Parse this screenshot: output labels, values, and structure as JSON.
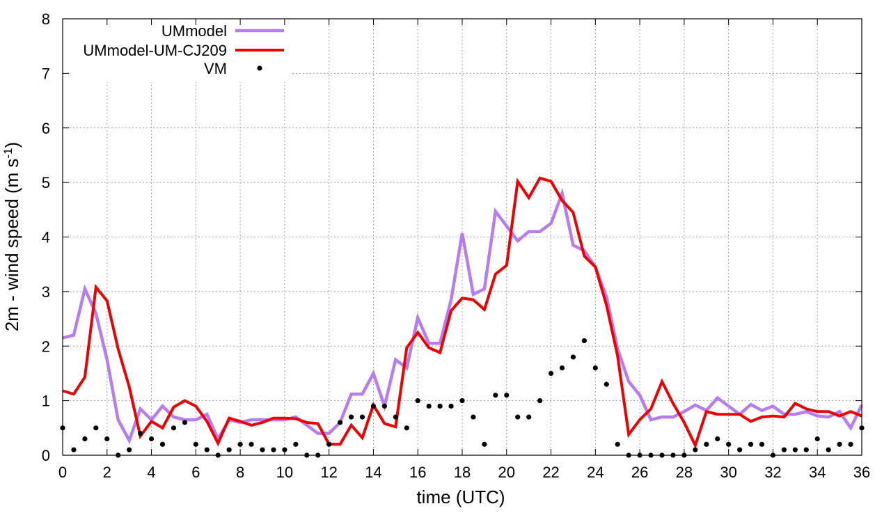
{
  "chart_data": {
    "type": "line",
    "xlabel": "time (UTC)",
    "ylabel_main": "2m - wind speed  (m s",
    "ylabel_sup": "-1",
    "ylabel_close": ")",
    "xlim": [
      0,
      36
    ],
    "ylim": [
      0,
      8
    ],
    "xticks": [
      0,
      2,
      4,
      6,
      8,
      10,
      12,
      14,
      16,
      18,
      20,
      22,
      24,
      26,
      28,
      30,
      32,
      34,
      36
    ],
    "yticks": [
      0,
      1,
      2,
      3,
      4,
      5,
      6,
      7,
      8
    ],
    "grid": true,
    "legend_position": "top-left",
    "series": [
      {
        "name": "UMmodel",
        "style": "line",
        "color": "#b77cf2",
        "x": [
          0,
          0.5,
          1,
          1.5,
          2,
          2.5,
          3,
          3.5,
          4,
          4.5,
          5,
          5.5,
          6,
          6.5,
          7,
          7.5,
          8,
          8.5,
          9,
          9.5,
          10,
          10.5,
          11,
          11.5,
          12,
          12.5,
          13,
          13.5,
          14,
          14.5,
          15,
          15.5,
          16,
          16.5,
          17,
          17.5,
          18,
          18.5,
          19,
          19.5,
          20,
          20.5,
          21,
          21.5,
          22,
          22.5,
          23,
          23.5,
          24,
          24.5,
          25,
          25.5,
          26,
          26.5,
          27,
          27.5,
          28,
          28.5,
          29,
          29.5,
          30,
          30.5,
          31,
          31.5,
          32,
          32.5,
          33,
          33.5,
          34,
          34.5,
          35,
          35.5,
          36
        ],
        "y": [
          2.15,
          2.2,
          3.05,
          2.6,
          1.75,
          0.65,
          0.27,
          0.85,
          0.65,
          0.9,
          0.7,
          0.65,
          0.65,
          0.75,
          0.3,
          0.65,
          0.6,
          0.65,
          0.65,
          0.65,
          0.65,
          0.7,
          0.55,
          0.4,
          0.4,
          0.6,
          1.12,
          1.12,
          1.5,
          0.9,
          1.75,
          1.6,
          2.52,
          2.05,
          2.05,
          2.85,
          4.07,
          2.95,
          3.05,
          4.47,
          4.2,
          3.93,
          4.1,
          4.1,
          4.25,
          4.8,
          3.85,
          3.75,
          3.45,
          2.9,
          1.95,
          1.35,
          1.1,
          0.65,
          0.7,
          0.7,
          0.8,
          0.92,
          0.82,
          1.05,
          0.9,
          0.75,
          0.93,
          0.82,
          0.9,
          0.75,
          0.75,
          0.8,
          0.72,
          0.7,
          0.8,
          0.5,
          0.92
        ]
      },
      {
        "name": "UMmodel-UM-CJ209",
        "style": "line",
        "color": "#ee0000",
        "x": [
          0,
          0.5,
          1,
          1.5,
          2,
          2.5,
          3,
          3.5,
          4,
          4.5,
          5,
          5.5,
          6,
          6.5,
          7,
          7.5,
          8,
          8.5,
          9,
          9.5,
          10,
          10.5,
          11,
          11.5,
          12,
          12.5,
          13,
          13.5,
          14,
          14.5,
          15,
          15.5,
          16,
          16.5,
          17,
          17.5,
          18,
          18.5,
          19,
          19.5,
          20,
          20.5,
          21,
          21.5,
          22,
          22.5,
          23,
          23.5,
          24,
          24.5,
          25,
          25.5,
          26,
          26.5,
          27,
          27.5,
          28,
          28.5,
          29,
          29.5,
          30,
          30.5,
          31,
          31.5,
          32,
          32.5,
          33,
          33.5,
          34,
          34.5,
          35,
          35.5,
          36
        ],
        "y": [
          1.18,
          1.12,
          1.43,
          3.08,
          2.83,
          1.95,
          1.25,
          0.35,
          0.62,
          0.5,
          0.88,
          1.0,
          0.9,
          0.62,
          0.22,
          0.68,
          0.62,
          0.55,
          0.6,
          0.68,
          0.68,
          0.67,
          0.6,
          0.58,
          0.2,
          0.2,
          0.55,
          0.32,
          0.92,
          0.58,
          0.52,
          1.97,
          2.25,
          1.97,
          1.88,
          2.65,
          2.88,
          2.85,
          2.67,
          3.32,
          3.48,
          5.02,
          4.72,
          5.08,
          5.02,
          4.67,
          4.45,
          3.65,
          3.45,
          2.75,
          1.82,
          0.38,
          0.65,
          0.85,
          1.35,
          0.95,
          0.6,
          0.18,
          0.8,
          0.75,
          0.75,
          0.75,
          0.62,
          0.7,
          0.72,
          0.7,
          0.95,
          0.85,
          0.8,
          0.8,
          0.72,
          0.8,
          0.72
        ]
      },
      {
        "name": "VM",
        "style": "points",
        "color": "#000000",
        "x": [
          0,
          0.5,
          1,
          1.5,
          2,
          2.5,
          3,
          3.5,
          4,
          4.5,
          5,
          5.5,
          6,
          6.5,
          7,
          7.5,
          8,
          8.5,
          9,
          9.5,
          10,
          10.5,
          11,
          11.5,
          12,
          12.5,
          13,
          13.5,
          14,
          14.5,
          15,
          15.5,
          16,
          16.5,
          17,
          17.5,
          18,
          18.5,
          19,
          19.5,
          20,
          20.5,
          21,
          21.5,
          22,
          22.5,
          23,
          23.5,
          24,
          24.5,
          25,
          25.5,
          26,
          26.5,
          27,
          27.5,
          28,
          28.5,
          29,
          29.5,
          30,
          30.5,
          31,
          31.5,
          32,
          32.5,
          33,
          33.5,
          34,
          34.5,
          35,
          35.5,
          36
        ],
        "y": [
          0.5,
          0.1,
          0.3,
          0.5,
          0.3,
          0.0,
          0.1,
          0.4,
          0.3,
          0.2,
          0.5,
          0.6,
          0.2,
          0.1,
          0.0,
          0.1,
          0.2,
          0.2,
          0.1,
          0.1,
          0.1,
          0.2,
          0.0,
          0.0,
          0.2,
          0.6,
          0.7,
          0.7,
          0.9,
          0.9,
          0.7,
          0.5,
          1.0,
          0.9,
          0.9,
          0.9,
          1.0,
          0.7,
          0.2,
          1.1,
          1.1,
          0.7,
          0.7,
          1.0,
          1.5,
          1.6,
          1.8,
          2.1,
          1.6,
          1.3,
          0.2,
          0.0,
          0.0,
          0.0,
          0.0,
          0.0,
          0.0,
          0.1,
          0.2,
          0.3,
          0.2,
          0.1,
          0.2,
          0.2,
          0.0,
          0.1,
          0.1,
          0.1,
          0.3,
          0.1,
          0.2,
          0.2,
          0.5
        ]
      }
    ]
  }
}
